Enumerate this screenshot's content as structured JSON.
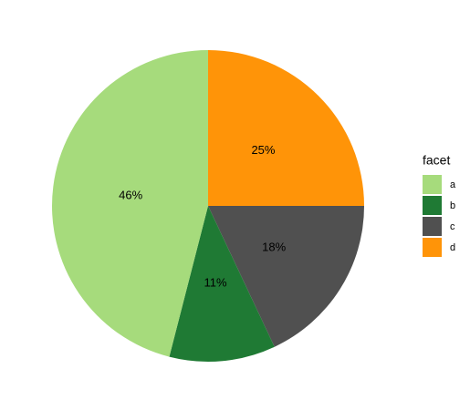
{
  "chart_data": {
    "type": "pie",
    "categories": [
      "a",
      "b",
      "c",
      "d"
    ],
    "values": [
      46,
      11,
      18,
      25
    ],
    "value_labels": [
      "46%",
      "11%",
      "18%",
      "25%"
    ],
    "colors": [
      "#a6db7c",
      "#1f7a34",
      "#505050",
      "#ff9408"
    ],
    "legend_title": "facet",
    "legend": "right"
  }
}
